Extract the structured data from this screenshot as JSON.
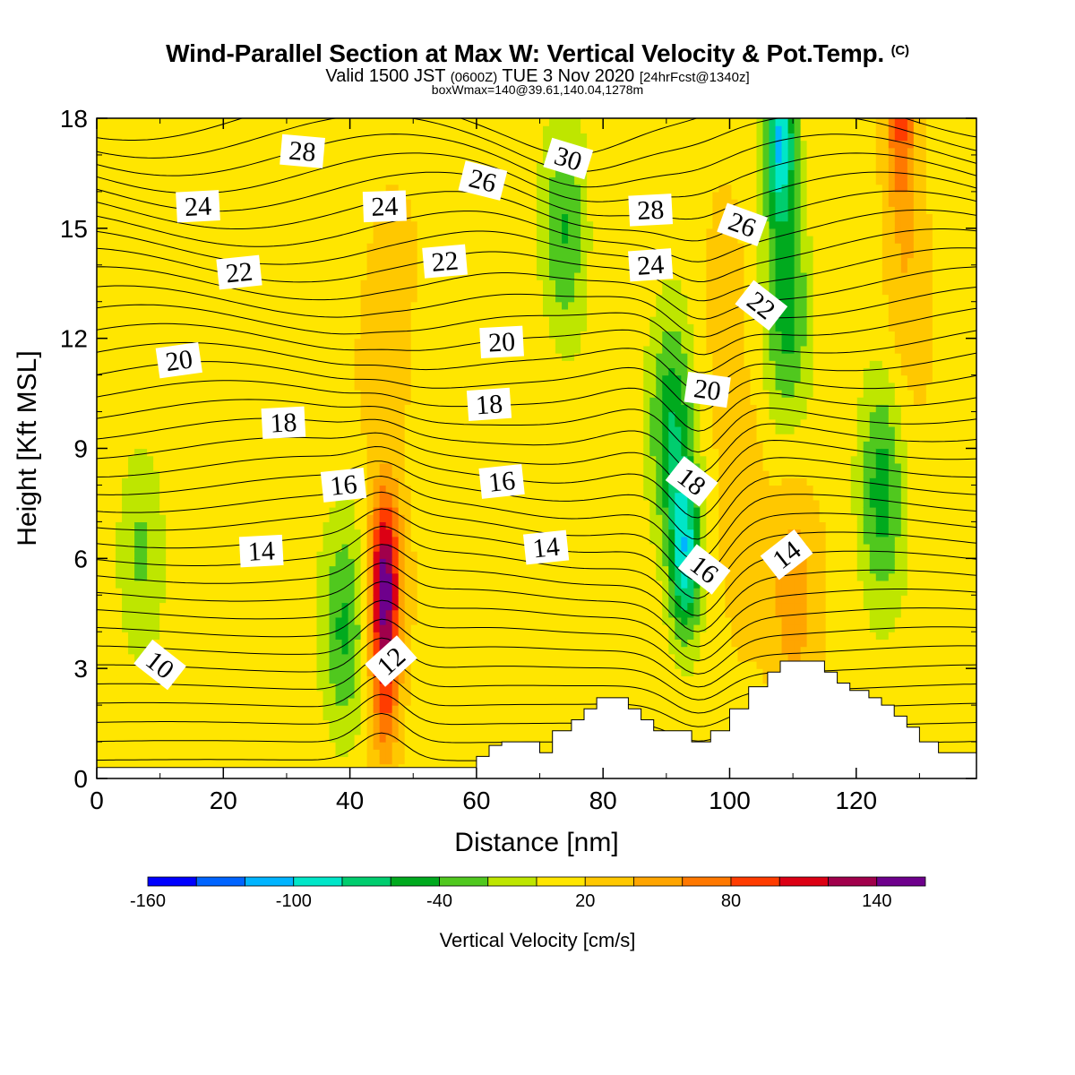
{
  "header": {
    "title": "Wind-Parallel Section at Max W: Vertical Velocity & Pot.Temp.",
    "copyright": "(C)",
    "subtitle_pre": "Valid 1500 JST ",
    "subtitle_utc": "(0600Z)",
    "subtitle_mid": " TUE 3 Nov 2020 ",
    "subtitle_fcst": "[24hrFcst@1340z]",
    "subtitle2": "boxWmax=140@39.61,140.04,1278m"
  },
  "chart_data": {
    "type": "heatmap",
    "xlabel": "Distance [nm]",
    "ylabel": "Height [Kft MSL]",
    "xlim": [
      0,
      139
    ],
    "ylim": [
      0,
      18
    ],
    "xticks": [
      "0",
      "20",
      "40",
      "60",
      "80",
      "100",
      "120"
    ],
    "xtick_values": [
      0,
      20,
      40,
      60,
      80,
      100,
      120
    ],
    "yticks": [
      "0",
      "3",
      "6",
      "9",
      "12",
      "15",
      "18"
    ],
    "ytick_values": [
      0,
      3,
      6,
      9,
      12,
      15,
      18
    ],
    "colorbar": {
      "title": "Vertical Velocity [cm/s]",
      "labels": [
        "-160",
        "-100",
        "-40",
        "20",
        "80",
        "140"
      ],
      "label_values": [
        -160,
        -100,
        -40,
        20,
        80,
        140
      ],
      "min": -160,
      "max": 160,
      "step": 20,
      "colors": [
        "#0000ff",
        "#0064ff",
        "#00b4ff",
        "#00e6c8",
        "#00cd6e",
        "#00aa1e",
        "#50c81e",
        "#bee600",
        "#ffe600",
        "#ffc800",
        "#ffa500",
        "#ff7800",
        "#ff3c00",
        "#dc0014",
        "#a0004b",
        "#6e008c"
      ]
    },
    "terrain": [
      [
        0,
        0.3
      ],
      [
        1,
        0.3
      ],
      [
        2,
        0.3
      ],
      [
        3,
        0.3
      ],
      [
        4,
        0.3
      ],
      [
        5,
        0.3
      ],
      [
        6,
        0.3
      ],
      [
        7,
        0.3
      ],
      [
        8,
        0.3
      ],
      [
        9,
        0.3
      ],
      [
        10,
        0.3
      ],
      [
        11,
        0.3
      ],
      [
        12,
        0.3
      ],
      [
        13,
        0.3
      ],
      [
        14,
        0.3
      ],
      [
        15,
        0.3
      ],
      [
        16,
        0.3
      ],
      [
        17,
        0.3
      ],
      [
        18,
        0.3
      ],
      [
        19,
        0.3
      ],
      [
        20,
        0.3
      ],
      [
        21,
        0.3
      ],
      [
        22,
        0.3
      ],
      [
        23,
        0.3
      ],
      [
        24,
        0.3
      ],
      [
        25,
        0.3
      ],
      [
        26,
        0.3
      ],
      [
        27,
        0.3
      ],
      [
        28,
        0.3
      ],
      [
        29,
        0.3
      ],
      [
        30,
        0.3
      ],
      [
        31,
        0.3
      ],
      [
        32,
        0.3
      ],
      [
        33,
        0.3
      ],
      [
        34,
        0.3
      ],
      [
        35,
        0.3
      ],
      [
        36,
        0.3
      ],
      [
        37,
        0.3
      ],
      [
        38,
        0.3
      ],
      [
        39,
        0.3
      ],
      [
        40,
        0.3
      ],
      [
        41,
        0.3
      ],
      [
        42,
        0.3
      ],
      [
        43,
        0.3
      ],
      [
        44,
        0.3
      ],
      [
        45,
        0.3
      ],
      [
        46,
        0.3
      ],
      [
        47,
        0.3
      ],
      [
        48,
        0.3
      ],
      [
        49,
        0.3
      ],
      [
        50,
        0.3
      ],
      [
        51,
        0.3
      ],
      [
        52,
        0.3
      ],
      [
        53,
        0.3
      ],
      [
        54,
        0.3
      ],
      [
        55,
        0.3
      ],
      [
        56,
        0.3
      ],
      [
        57,
        0.3
      ],
      [
        58,
        0.3
      ],
      [
        59,
        0.3
      ],
      [
        60,
        0.6
      ],
      [
        61,
        0.6
      ],
      [
        62,
        0.9
      ],
      [
        63,
        0.9
      ],
      [
        64,
        1.0
      ],
      [
        65,
        1.0
      ],
      [
        66,
        1.0
      ],
      [
        67,
        1.0
      ],
      [
        68,
        1.0
      ],
      [
        69,
        1.0
      ],
      [
        70,
        0.7
      ],
      [
        71,
        0.7
      ],
      [
        72,
        1.3
      ],
      [
        73,
        1.3
      ],
      [
        74,
        1.3
      ],
      [
        75,
        1.6
      ],
      [
        76,
        1.6
      ],
      [
        77,
        1.9
      ],
      [
        78,
        1.9
      ],
      [
        79,
        2.2
      ],
      [
        80,
        2.2
      ],
      [
        81,
        2.2
      ],
      [
        82,
        2.2
      ],
      [
        83,
        2.2
      ],
      [
        84,
        1.9
      ],
      [
        85,
        1.9
      ],
      [
        86,
        1.6
      ],
      [
        87,
        1.6
      ],
      [
        88,
        1.3
      ],
      [
        89,
        1.3
      ],
      [
        90,
        1.3
      ],
      [
        91,
        1.3
      ],
      [
        92,
        1.3
      ],
      [
        93,
        1.3
      ],
      [
        94,
        1.0
      ],
      [
        95,
        1.0
      ],
      [
        96,
        1.0
      ],
      [
        97,
        1.3
      ],
      [
        98,
        1.3
      ],
      [
        99,
        1.3
      ],
      [
        100,
        1.9
      ],
      [
        101,
        1.9
      ],
      [
        102,
        1.9
      ],
      [
        103,
        2.5
      ],
      [
        104,
        2.5
      ],
      [
        105,
        2.5
      ],
      [
        106,
        2.9
      ],
      [
        107,
        2.9
      ],
      [
        108,
        3.2
      ],
      [
        109,
        3.2
      ],
      [
        110,
        3.2
      ],
      [
        111,
        3.2
      ],
      [
        112,
        3.2
      ],
      [
        113,
        3.2
      ],
      [
        114,
        3.2
      ],
      [
        115,
        2.9
      ],
      [
        116,
        2.9
      ],
      [
        117,
        2.6
      ],
      [
        118,
        2.6
      ],
      [
        119,
        2.4
      ],
      [
        120,
        2.4
      ],
      [
        121,
        2.4
      ],
      [
        122,
        2.2
      ],
      [
        123,
        2.2
      ],
      [
        124,
        2.0
      ],
      [
        125,
        2.0
      ],
      [
        126,
        1.7
      ],
      [
        127,
        1.7
      ],
      [
        128,
        1.4
      ],
      [
        129,
        1.4
      ],
      [
        130,
        1.0
      ],
      [
        131,
        1.0
      ],
      [
        132,
        1.0
      ],
      [
        133,
        0.7
      ],
      [
        134,
        0.7
      ],
      [
        135,
        0.7
      ],
      [
        136,
        0.7
      ],
      [
        137,
        0.7
      ],
      [
        138,
        0.7
      ],
      [
        139,
        0.7
      ]
    ],
    "updraft_cores": [
      {
        "x": 45.5,
        "y": 5.5,
        "value": 140
      },
      {
        "x": 45.5,
        "y": 2.5,
        "value": 80
      },
      {
        "x": 46,
        "y": 12,
        "value": 40
      },
      {
        "x": 127,
        "y": 17.8,
        "value": 80
      },
      {
        "x": 128,
        "y": 13.8,
        "value": 40
      },
      {
        "x": 99,
        "y": 14,
        "value": 30
      },
      {
        "x": 110,
        "y": 5,
        "value": 50
      },
      {
        "x": 102,
        "y": 7,
        "value": 40
      }
    ],
    "downdraft_cores": [
      {
        "x": 93,
        "y": 6,
        "value": -80
      },
      {
        "x": 91,
        "y": 9.5,
        "value": -60
      },
      {
        "x": 108,
        "y": 17.5,
        "value": -100
      },
      {
        "x": 109,
        "y": 13,
        "value": -50
      },
      {
        "x": 124,
        "y": 8,
        "value": -50
      },
      {
        "x": 74,
        "y": 15,
        "value": -40
      },
      {
        "x": 39,
        "y": 4,
        "value": -40
      },
      {
        "x": 7,
        "y": 6.4,
        "value": -20
      }
    ],
    "isentrope_labels": [
      {
        "text": "10",
        "x": 10,
        "y": 3.1,
        "angle": 38
      },
      {
        "text": "12",
        "x": 46.5,
        "y": 3.2,
        "angle": -42
      },
      {
        "text": "14",
        "x": 26,
        "y": 6.2,
        "angle": -3
      },
      {
        "text": "14",
        "x": 71,
        "y": 6.3,
        "angle": -6
      },
      {
        "text": "14",
        "x": 109,
        "y": 6.1,
        "angle": -38
      },
      {
        "text": "16",
        "x": 39,
        "y": 8.0,
        "angle": -6
      },
      {
        "text": "16",
        "x": 64,
        "y": 8.1,
        "angle": -6
      },
      {
        "text": "16",
        "x": 96,
        "y": 5.7,
        "angle": 38
      },
      {
        "text": "18",
        "x": 29.5,
        "y": 9.7,
        "angle": -3
      },
      {
        "text": "18",
        "x": 62,
        "y": 10.2,
        "angle": -4
      },
      {
        "text": "18",
        "x": 94,
        "y": 8.1,
        "angle": 38
      },
      {
        "text": "20",
        "x": 13,
        "y": 11.4,
        "angle": -8
      },
      {
        "text": "20",
        "x": 64,
        "y": 11.9,
        "angle": -3
      },
      {
        "text": "20",
        "x": 96.5,
        "y": 10.6,
        "angle": 8
      },
      {
        "text": "22",
        "x": 22.5,
        "y": 13.8,
        "angle": -6
      },
      {
        "text": "22",
        "x": 55,
        "y": 14.1,
        "angle": -5
      },
      {
        "text": "22",
        "x": 105,
        "y": 12.9,
        "angle": 38
      },
      {
        "text": "24",
        "x": 16,
        "y": 15.6,
        "angle": -3
      },
      {
        "text": "24",
        "x": 45.5,
        "y": 15.6,
        "angle": -2
      },
      {
        "text": "24",
        "x": 87.5,
        "y": 14.0,
        "angle": -4
      },
      {
        "text": "26",
        "x": 61,
        "y": 16.3,
        "angle": 14
      },
      {
        "text": "26",
        "x": 102,
        "y": 15.1,
        "angle": 20
      },
      {
        "text": "28",
        "x": 32.5,
        "y": 17.1,
        "angle": 5
      },
      {
        "text": "28",
        "x": 87.5,
        "y": 15.5,
        "angle": -3
      },
      {
        "text": "30",
        "x": 74.5,
        "y": 16.9,
        "angle": 17
      }
    ]
  }
}
